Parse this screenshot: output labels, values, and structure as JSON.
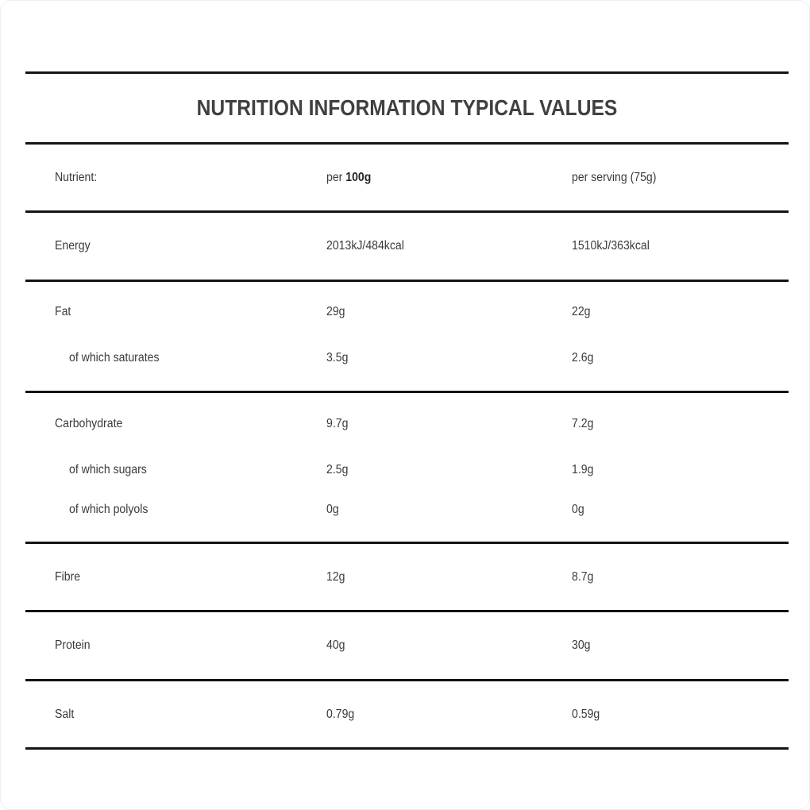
{
  "table": {
    "title": "NUTRITION INFORMATION TYPICAL VALUES",
    "header": {
      "nutrient_label": "Nutrient:",
      "per100_prefix": "per ",
      "per100_bold": "100g",
      "per_serving": "per serving (75g)"
    },
    "groups": [
      {
        "rows": [
          {
            "name": "Energy",
            "per100": "2013kJ/484kcal",
            "serving": "1510kJ/363kcal"
          }
        ]
      },
      {
        "rows": [
          {
            "name": "Fat",
            "per100": "29g",
            "serving": "22g"
          },
          {
            "name": "of which saturates",
            "per100": "3.5g",
            "serving": "2.6g"
          }
        ]
      },
      {
        "rows": [
          {
            "name": "Carbohydrate",
            "per100": "9.7g",
            "serving": "7.2g"
          },
          {
            "name": "of which sugars",
            "per100": "2.5g",
            "serving": "1.9g"
          },
          {
            "name": "of which polyols",
            "per100": "0g",
            "serving": "0g"
          }
        ]
      },
      {
        "rows": [
          {
            "name": "Fibre",
            "per100": "12g",
            "serving": "8.7g"
          }
        ]
      },
      {
        "rows": [
          {
            "name": "Protein",
            "per100": "40g",
            "serving": "30g"
          }
        ]
      },
      {
        "rows": [
          {
            "name": "Salt",
            "per100": "0.79g",
            "serving": "0.59g"
          }
        ]
      }
    ]
  }
}
